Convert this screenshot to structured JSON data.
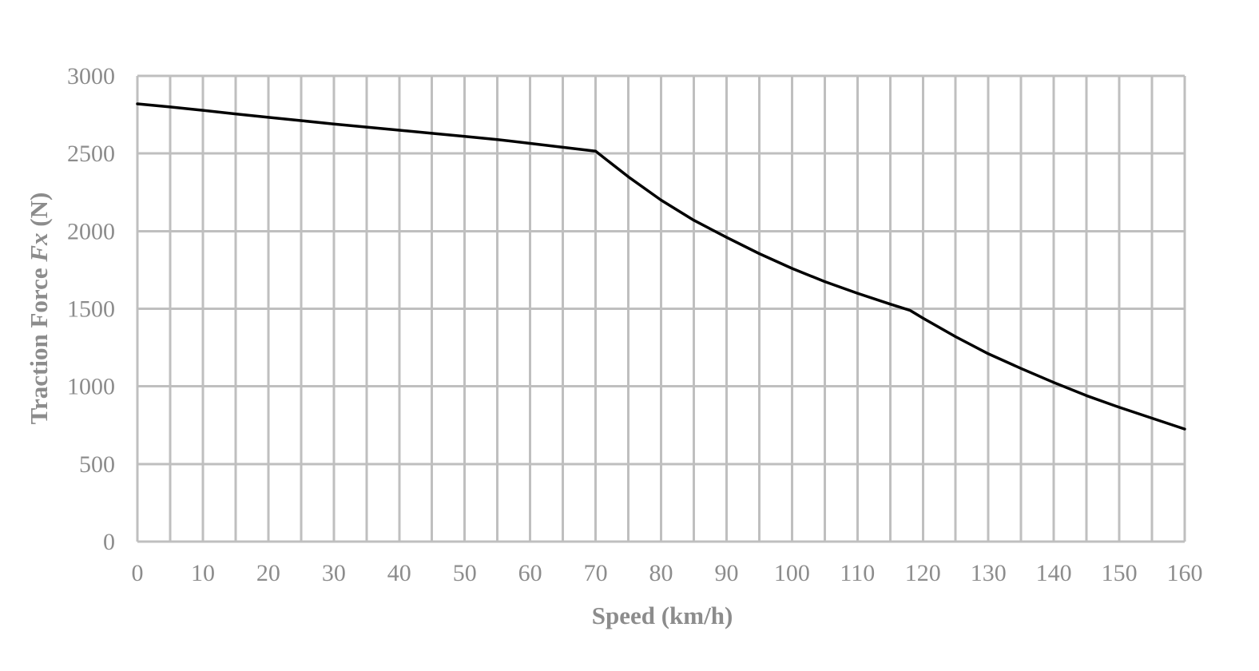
{
  "chart_data": {
    "type": "line",
    "xlabel": "Speed (km/h)",
    "ylabel_prefix": "Traction Force ",
    "ylabel_symbol": "Fx",
    "ylabel_suffix": " (N)",
    "xlim": [
      0,
      160
    ],
    "ylim": [
      0,
      3000
    ],
    "x_ticks": [
      0,
      10,
      20,
      30,
      40,
      50,
      60,
      70,
      80,
      90,
      100,
      110,
      120,
      130,
      140,
      150,
      160
    ],
    "y_ticks": [
      0,
      500,
      1000,
      1500,
      2000,
      2500,
      3000
    ],
    "x_minor_grid_step": 5,
    "grid": true,
    "colors": {
      "line": "#000000",
      "grid": "#bfbfbf",
      "text": "#8c8c8c"
    },
    "series": [
      {
        "x": [
          0,
          5,
          10,
          15,
          20,
          25,
          30,
          35,
          40,
          45,
          50,
          55,
          60,
          65,
          70,
          75,
          80,
          85,
          90,
          95,
          100,
          105,
          110,
          115,
          118,
          120,
          125,
          130,
          135,
          140,
          145,
          150,
          155,
          160
        ],
        "y": [
          2820,
          2800,
          2778,
          2755,
          2733,
          2712,
          2690,
          2670,
          2650,
          2630,
          2610,
          2590,
          2565,
          2540,
          2515,
          2350,
          2200,
          2070,
          1960,
          1855,
          1760,
          1675,
          1600,
          1530,
          1490,
          1440,
          1320,
          1210,
          1115,
          1025,
          940,
          865,
          795,
          725
        ]
      }
    ]
  }
}
